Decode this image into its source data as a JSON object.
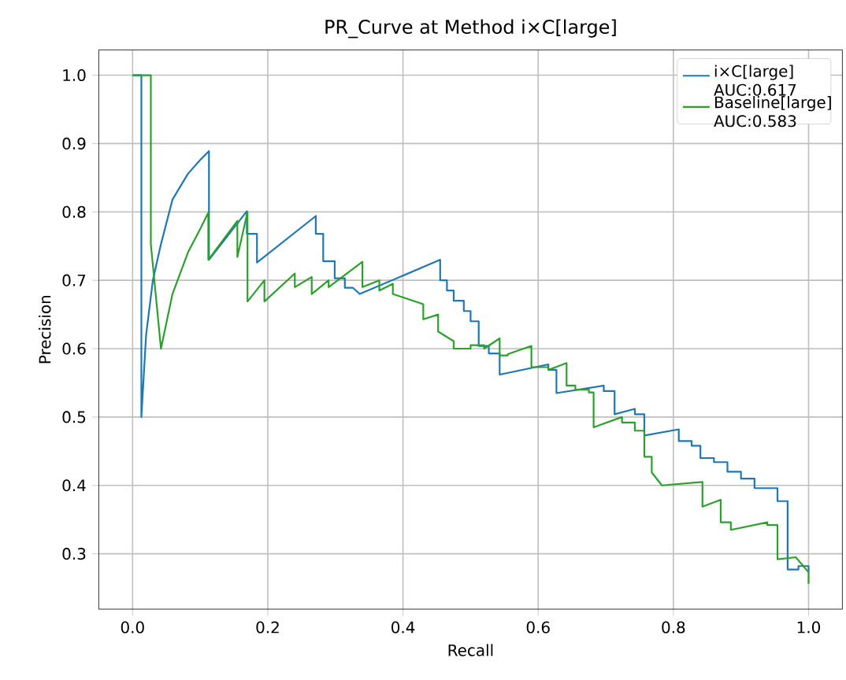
{
  "chart_data": {
    "type": "line",
    "title": "PR_Curve at Method i×C[large]",
    "xlabel": "Recall",
    "ylabel": "Precision",
    "xlim": [
      -0.05,
      1.05
    ],
    "ylim": [
      0.219,
      1.037
    ],
    "xticks": [
      {
        "value": 0,
        "label": "0.0"
      },
      0.2,
      0.4,
      0.6,
      0.8,
      {
        "value": 1,
        "label": "1.0"
      }
    ],
    "yticks": [
      0.3,
      0.4,
      0.5,
      0.6,
      0.7,
      0.8,
      0.9,
      {
        "value": 1,
        "label": "1.0"
      }
    ],
    "grid": true,
    "legend": "top right",
    "series": [
      {
        "name": "i×C[large] AUC:0.617",
        "color": "#1f77b4",
        "x": [
          0,
          0.013,
          0.013,
          0.02,
          0.03,
          0.042,
          0.059,
          0.082,
          0.1,
          0.113,
          0.113,
          0.169,
          0.169,
          0.184,
          0.184,
          0.271,
          0.271,
          0.282,
          0.282,
          0.299,
          0.299,
          0.314,
          0.314,
          0.326,
          0.336,
          0.455,
          0.455,
          0.465,
          0.465,
          0.475,
          0.475,
          0.49,
          0.49,
          0.5,
          0.5,
          0.512,
          0.512,
          0.527,
          0.527,
          0.543,
          0.543,
          0.615,
          0.615,
          0.627,
          0.627,
          0.697,
          0.697,
          0.713,
          0.713,
          0.743,
          0.743,
          0.757,
          0.757,
          0.808,
          0.808,
          0.827,
          0.827,
          0.84,
          0.84,
          0.86,
          0.86,
          0.88,
          0.88,
          0.9,
          0.9,
          0.92,
          0.92,
          0.94,
          0.94,
          0.954,
          0.954,
          0.969,
          0.969,
          0.985,
          0.985,
          1.0,
          1.0
        ],
        "values": [
          1.0,
          1.0,
          0.5,
          0.62,
          0.7,
          0.753,
          0.818,
          0.856,
          0.876,
          0.889,
          0.73,
          0.801,
          0.768,
          0.768,
          0.726,
          0.794,
          0.768,
          0.768,
          0.728,
          0.728,
          0.703,
          0.703,
          0.689,
          0.689,
          0.68,
          0.73,
          0.7,
          0.7,
          0.685,
          0.685,
          0.67,
          0.67,
          0.655,
          0.655,
          0.64,
          0.64,
          0.604,
          0.604,
          0.593,
          0.593,
          0.562,
          0.577,
          0.569,
          0.569,
          0.535,
          0.546,
          0.538,
          0.538,
          0.504,
          0.512,
          0.504,
          0.504,
          0.473,
          0.482,
          0.465,
          0.465,
          0.458,
          0.458,
          0.44,
          0.44,
          0.434,
          0.434,
          0.42,
          0.42,
          0.41,
          0.41,
          0.396,
          0.396,
          0.396,
          0.396,
          0.377,
          0.377,
          0.277,
          0.277,
          0.282,
          0.282,
          0.274
        ]
      },
      {
        "name": "Baseline[large] AUC:0.583",
        "color": "#2ca02c",
        "x": [
          0,
          0.027,
          0.027,
          0.042,
          0.042,
          0.059,
          0.082,
          0.1,
          0.112,
          0.112,
          0.155,
          0.155,
          0.17,
          0.17,
          0.195,
          0.195,
          0.24,
          0.24,
          0.265,
          0.265,
          0.29,
          0.29,
          0.34,
          0.34,
          0.365,
          0.365,
          0.385,
          0.385,
          0.43,
          0.43,
          0.452,
          0.452,
          0.475,
          0.475,
          0.5,
          0.5,
          0.52,
          0.52,
          0.543,
          0.543,
          0.555,
          0.555,
          0.59,
          0.59,
          0.615,
          0.615,
          0.642,
          0.642,
          0.655,
          0.655,
          0.675,
          0.675,
          0.682,
          0.682,
          0.724,
          0.724,
          0.743,
          0.743,
          0.757,
          0.757,
          0.768,
          0.768,
          0.783,
          0.783,
          0.843,
          0.843,
          0.87,
          0.87,
          0.885,
          0.885,
          0.939,
          0.939,
          0.954,
          0.954,
          0.981,
          0.981,
          1.0,
          1.0
        ],
        "values": [
          1.0,
          1.0,
          0.753,
          0.6,
          0.6,
          0.68,
          0.741,
          0.775,
          0.799,
          0.73,
          0.787,
          0.734,
          0.8,
          0.669,
          0.7,
          0.669,
          0.71,
          0.69,
          0.705,
          0.68,
          0.7,
          0.69,
          0.727,
          0.69,
          0.7,
          0.685,
          0.695,
          0.68,
          0.665,
          0.643,
          0.65,
          0.625,
          0.611,
          0.6,
          0.6,
          0.605,
          0.605,
          0.6,
          0.615,
          0.59,
          0.59,
          0.592,
          0.604,
          0.573,
          0.573,
          0.569,
          0.579,
          0.546,
          0.546,
          0.54,
          0.54,
          0.536,
          0.536,
          0.485,
          0.5,
          0.492,
          0.492,
          0.48,
          0.48,
          0.442,
          0.442,
          0.419,
          0.4,
          0.4,
          0.405,
          0.369,
          0.379,
          0.346,
          0.346,
          0.335,
          0.346,
          0.342,
          0.342,
          0.292,
          0.295,
          0.295,
          0.273,
          0.256
        ]
      }
    ]
  }
}
